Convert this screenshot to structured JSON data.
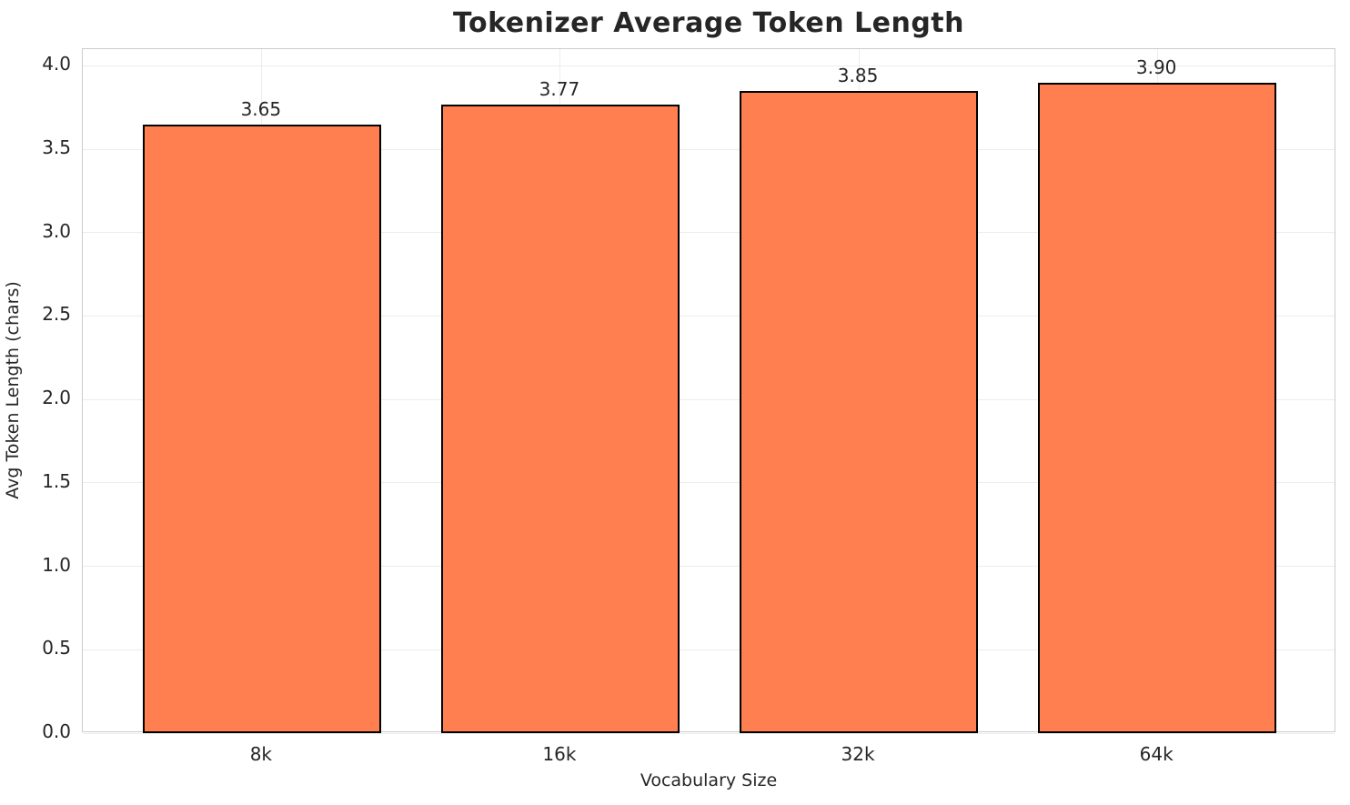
{
  "figure": {
    "title": "Tokenizer Average Token Length"
  },
  "chart_data": {
    "type": "bar",
    "title": "Tokenizer Average Token Length",
    "xlabel": "Vocabulary Size",
    "ylabel": "Avg Token Length (chars)",
    "categories": [
      "8k",
      "16k",
      "32k",
      "64k"
    ],
    "values": [
      3.65,
      3.77,
      3.85,
      3.9
    ],
    "value_labels": [
      "3.65",
      "3.77",
      "3.85",
      "3.90"
    ],
    "ylim": [
      0,
      4.1
    ],
    "yticks": [
      0.0,
      0.5,
      1.0,
      1.5,
      2.0,
      2.5,
      3.0,
      3.5,
      4.0
    ],
    "ytick_labels": [
      "0.0",
      "0.5",
      "1.0",
      "1.5",
      "2.0",
      "2.5",
      "3.0",
      "3.5",
      "4.0"
    ],
    "grid": true,
    "legend_position": "none",
    "bar_color": "#FF7F50",
    "bar_edge_color": "#000000",
    "grid_color": "#ececec",
    "spine_color": "#cccccc",
    "text_color": "#262626",
    "background_color": "#ffffff"
  }
}
